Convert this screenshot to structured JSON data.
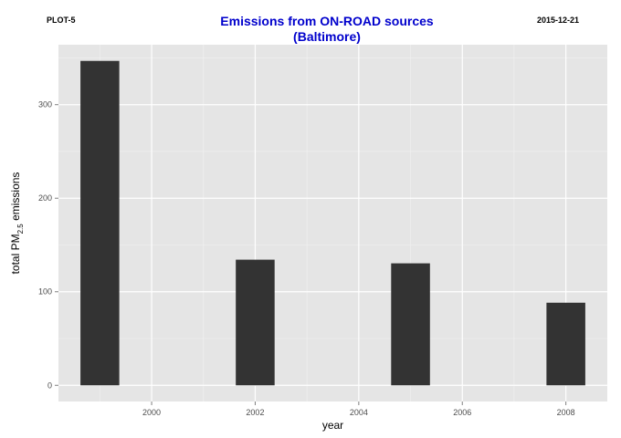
{
  "header": {
    "left_tag": "PLOT-5",
    "date": "2015-12-21"
  },
  "chart_data": {
    "type": "bar",
    "title": "Emissions from ON-ROAD sources (Baltimore)",
    "title_lines": [
      "Emissions from ON-ROAD sources",
      "(Baltimore)"
    ],
    "title_color": "#0000cc",
    "xlabel": "year",
    "ylabel": {
      "main": "total PM",
      "sub": "2.5",
      "suffix": " emissions"
    },
    "x": [
      1999,
      2002,
      2005,
      2008
    ],
    "values": [
      346.8,
      134.3,
      130.4,
      88.3
    ],
    "xlim": [
      1998.2,
      2008.8
    ],
    "ylim": [
      -17.3,
      364.1
    ],
    "x_ticks": [
      2000,
      2002,
      2004,
      2006,
      2008
    ],
    "x_tick_labels": [
      "2000",
      "2002",
      "2004",
      "2006",
      "2008"
    ],
    "x_minor": [
      1999,
      2001,
      2003,
      2005,
      2007
    ],
    "y_ticks": [
      0,
      100,
      200,
      300
    ],
    "y_tick_labels": [
      "0",
      "100",
      "200",
      "300"
    ],
    "y_minor": [
      50,
      150,
      250,
      350
    ],
    "bar_width_years": 0.75,
    "bar_color": "#333333",
    "panel_color": "#e5e5e5",
    "grid": true,
    "legend": "none"
  }
}
